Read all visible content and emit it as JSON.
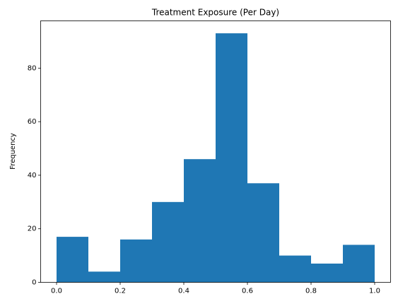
{
  "chart_data": {
    "type": "histogram",
    "title": "Treatment Exposure (Per Day)",
    "ylabel": "Frequency",
    "bins": [
      0,
      0.1,
      0.2,
      0.3,
      0.4,
      0.5,
      0.6,
      0.7,
      0.8,
      0.9,
      1.0
    ],
    "counts": [
      17,
      4,
      16,
      30,
      46,
      93,
      37,
      10,
      7,
      14
    ],
    "color": "#1f77b4",
    "xlim": [
      -0.05,
      1.05
    ],
    "xticks": [
      {
        "value": 0,
        "label": "0.0"
      },
      {
        "value": 0.2,
        "label": "0.2"
      },
      {
        "value": 0.4,
        "label": "0.4"
      },
      {
        "value": 0.6,
        "label": "0.6"
      },
      {
        "value": 0.8,
        "label": "0.8"
      },
      {
        "value": 1.0,
        "label": "1.0"
      }
    ],
    "ylim": [
      0,
      97.65
    ],
    "yticks": [
      0,
      20,
      40,
      60,
      80
    ],
    "grid": false
  }
}
